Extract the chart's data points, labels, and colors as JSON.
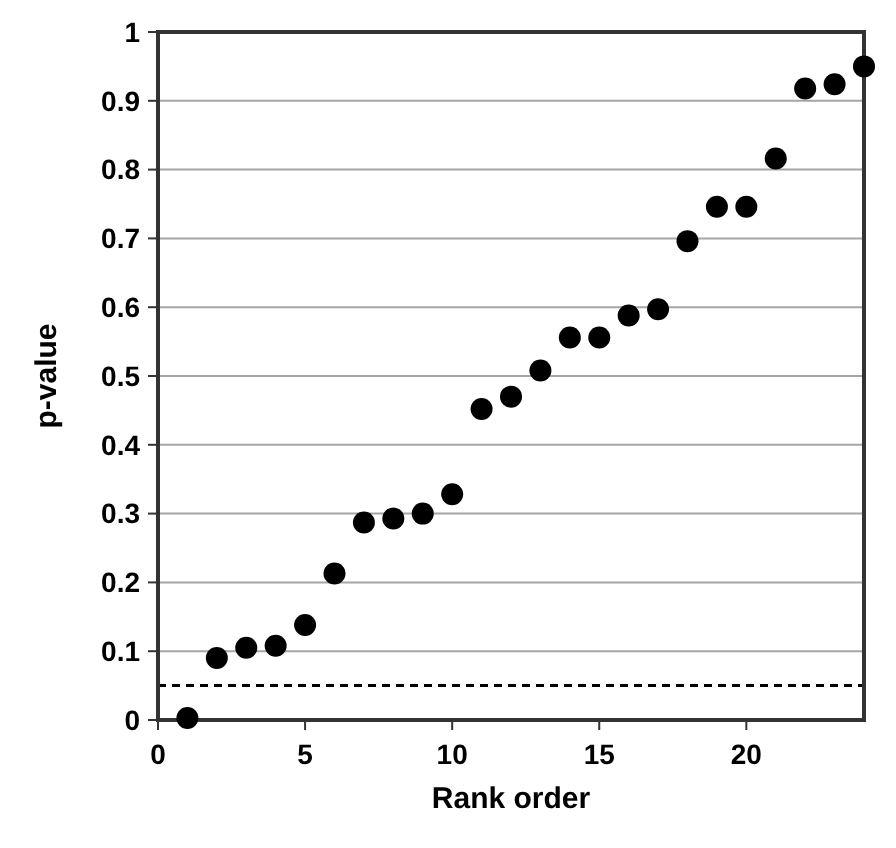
{
  "chart_data": {
    "type": "scatter",
    "xlabel": "Rank order",
    "ylabel": "p-value",
    "x": [
      1,
      2,
      3,
      4,
      5,
      6,
      7,
      8,
      9,
      10,
      11,
      12,
      13,
      14,
      15,
      16,
      17,
      18,
      19,
      20,
      21,
      22,
      23,
      24
    ],
    "values": [
      0.003,
      0.09,
      0.105,
      0.108,
      0.138,
      0.213,
      0.287,
      0.293,
      0.3,
      0.328,
      0.452,
      0.47,
      0.508,
      0.556,
      0.556,
      0.588,
      0.597,
      0.696,
      0.746,
      0.746,
      0.816,
      0.918,
      0.924,
      0.95
    ],
    "color": "#000000",
    "marker": "circle",
    "xlim": [
      0,
      24
    ],
    "xticks": [
      0,
      5,
      10,
      15,
      20
    ],
    "ylim": [
      0,
      1
    ],
    "yticks": [
      0,
      0.1,
      0.2,
      0.3,
      0.4,
      0.5,
      0.6,
      0.7,
      0.8,
      0.9,
      1
    ],
    "grid": "y",
    "ref_lines": [
      {
        "axis": "y",
        "value": 0.05,
        "label": null,
        "color": "#000000",
        "line_style": "dashed"
      }
    ]
  }
}
